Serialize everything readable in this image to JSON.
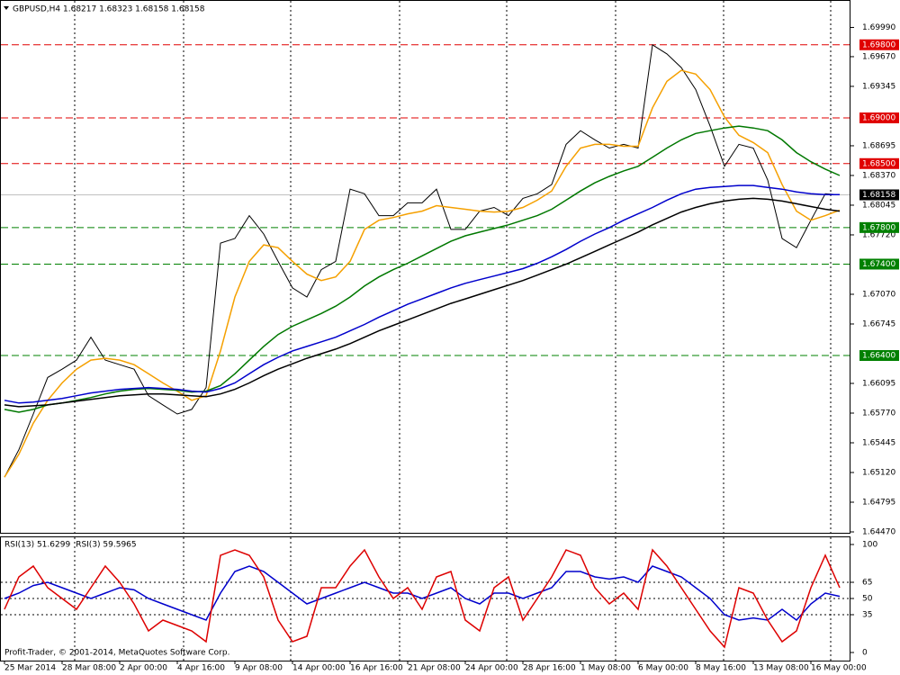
{
  "chart_data": [
    {
      "type": "line",
      "title": "GBPUSD,H4  1.68217 1.68323 1.68158 1.68158",
      "categories": [
        "25 Mar 2014",
        null,
        null,
        null,
        "28 Mar 08:00",
        null,
        null,
        null,
        "2 Apr 00:00",
        null,
        null,
        null,
        "4 Apr 16:00",
        null,
        null,
        null,
        "9 Apr 08:00",
        null,
        null,
        null,
        "14 Apr 00:00",
        null,
        null,
        null,
        "16 Apr 16:00",
        null,
        null,
        null,
        "21 Apr 08:00",
        null,
        null,
        null,
        "24 Apr 00:00",
        null,
        null,
        null,
        "28 Apr 16:00",
        null,
        null,
        null,
        "1 May 08:00",
        null,
        null,
        null,
        "6 May 00:00",
        null,
        null,
        null,
        "8 May 16:00",
        null,
        null,
        null,
        "13 May 08:00",
        null,
        null,
        null,
        "16 May 00:00",
        null,
        null
      ],
      "series": [
        {
          "color": "#000000",
          "values": [
            1.6507,
            1.6537,
            1.6576,
            1.6616,
            1.6625,
            1.6635,
            1.666,
            1.6635,
            1.663,
            1.6625,
            1.6596,
            1.6586,
            1.6576,
            1.6581,
            1.6605,
            1.6763,
            1.6768,
            1.6793,
            1.6773,
            1.6743,
            1.6714,
            1.6704,
            1.6734,
            1.6743,
            1.6822,
            1.6817,
            1.6793,
            1.6793,
            1.6807,
            1.6807,
            1.6822,
            1.6778,
            1.6778,
            1.6798,
            1.6802,
            1.6793,
            1.6812,
            1.6817,
            1.6827,
            1.6871,
            1.6886,
            1.6876,
            1.6867,
            1.6871,
            1.6867,
            1.698,
            1.697,
            1.6955,
            1.6931,
            1.6891,
            1.6847,
            1.6871,
            1.6867,
            1.6832,
            1.6768,
            1.6758,
            1.6788,
            1.6817,
            1.68158
          ]
        },
        {
          "color": "#f5a000",
          "values": [
            1.6507,
            1.6532,
            1.6566,
            1.6591,
            1.661,
            1.6625,
            1.6635,
            1.6637,
            1.6635,
            1.663,
            1.662,
            1.661,
            1.6601,
            1.6591,
            1.6596,
            1.6645,
            1.6704,
            1.6743,
            1.6761,
            1.6758,
            1.6743,
            1.6729,
            1.6722,
            1.6726,
            1.6743,
            1.6778,
            1.6788,
            1.6791,
            1.6795,
            1.6798,
            1.6804,
            1.6802,
            1.68,
            1.6798,
            1.6797,
            1.6798,
            1.6802,
            1.681,
            1.682,
            1.6847,
            1.6867,
            1.6871,
            1.6871,
            1.6869,
            1.6869,
            1.6911,
            1.694,
            1.6952,
            1.6948,
            1.6931,
            1.6901,
            1.6881,
            1.6873,
            1.6862,
            1.6827,
            1.6798,
            1.6788,
            1.6793,
            1.6799
          ]
        },
        {
          "color": "#007800",
          "values": [
            1.6581,
            1.6578,
            1.6581,
            1.6586,
            1.6588,
            1.6591,
            1.6594,
            1.6598,
            1.6601,
            1.6603,
            1.6604,
            1.6603,
            1.6602,
            1.66,
            1.6601,
            1.6607,
            1.662,
            1.6635,
            1.665,
            1.6663,
            1.6672,
            1.6679,
            1.6686,
            1.6694,
            1.6704,
            1.6716,
            1.6726,
            1.6734,
            1.6741,
            1.6749,
            1.6757,
            1.6765,
            1.6771,
            1.6775,
            1.6779,
            1.6783,
            1.6788,
            1.6793,
            1.68,
            1.681,
            1.682,
            1.6829,
            1.6836,
            1.6842,
            1.6847,
            1.6857,
            1.6867,
            1.6876,
            1.6883,
            1.6886,
            1.6889,
            1.6891,
            1.6889,
            1.6886,
            1.6876,
            1.6862,
            1.6852,
            1.6844,
            1.6837
          ]
        },
        {
          "color": "#0000cc",
          "values": [
            1.6591,
            1.6588,
            1.6589,
            1.6591,
            1.6593,
            1.6596,
            1.6599,
            1.6601,
            1.6603,
            1.6604,
            1.6605,
            1.6604,
            1.6603,
            1.6601,
            1.66,
            1.6604,
            1.661,
            1.662,
            1.663,
            1.6638,
            1.6645,
            1.665,
            1.6655,
            1.666,
            1.6667,
            1.6674,
            1.6682,
            1.6689,
            1.6696,
            1.6702,
            1.6708,
            1.6714,
            1.6719,
            1.6723,
            1.6727,
            1.6731,
            1.6735,
            1.6741,
            1.6748,
            1.6756,
            1.6765,
            1.6773,
            1.678,
            1.6788,
            1.6795,
            1.6802,
            1.681,
            1.6817,
            1.6822,
            1.6824,
            1.6825,
            1.6826,
            1.6826,
            1.6824,
            1.6822,
            1.6819,
            1.6817,
            1.6816,
            1.6816
          ]
        },
        {
          "color": "#000000",
          "values": [
            1.6586,
            1.6584,
            1.6585,
            1.6586,
            1.6588,
            1.659,
            1.6592,
            1.6594,
            1.6596,
            1.6597,
            1.6598,
            1.6598,
            1.6597,
            1.6596,
            1.6595,
            1.6598,
            1.6603,
            1.661,
            1.6618,
            1.6625,
            1.6631,
            1.6637,
            1.6642,
            1.6647,
            1.6653,
            1.666,
            1.6667,
            1.6673,
            1.6679,
            1.6685,
            1.6691,
            1.6697,
            1.6702,
            1.6707,
            1.6712,
            1.6717,
            1.6722,
            1.6728,
            1.6734,
            1.674,
            1.6747,
            1.6754,
            1.6761,
            1.6768,
            1.6775,
            1.6783,
            1.679,
            1.6797,
            1.6802,
            1.6806,
            1.6809,
            1.6811,
            1.6812,
            1.6811,
            1.6809,
            1.6806,
            1.6803,
            1.68,
            1.6798
          ]
        }
      ],
      "ylim": [
        1.6447,
        1.7029
      ],
      "yticks": [
        {
          "value": 1.6447,
          "label": "1.64470"
        },
        {
          "value": 1.64795,
          "label": "1.64795"
        },
        {
          "value": 1.6512,
          "label": "1.65120"
        },
        {
          "value": 1.65445,
          "label": "1.65445"
        },
        {
          "value": 1.6577,
          "label": "1.65770"
        },
        {
          "value": 1.66095,
          "label": "1.66095"
        },
        {
          "value": 1.66745,
          "label": "1.66745"
        },
        {
          "value": 1.6707,
          "label": "1.67070"
        },
        {
          "value": 1.6772,
          "label": "1.67720"
        },
        {
          "value": 1.68045,
          "label": "1.68045"
        },
        {
          "value": 1.6837,
          "label": "1.68370"
        },
        {
          "value": 1.68695,
          "label": "1.68695"
        },
        {
          "value": 1.69345,
          "label": "1.69345"
        },
        {
          "value": 1.6967,
          "label": "1.69670"
        },
        {
          "value": 1.6999,
          "label": "1.69990"
        }
      ],
      "levels": [
        {
          "value": 1.698,
          "label": "1.69800",
          "color": "#e00000"
        },
        {
          "value": 1.69,
          "label": "1.69000",
          "color": "#e00000"
        },
        {
          "value": 1.685,
          "label": "1.68500",
          "color": "#e00000"
        },
        {
          "value": 1.678,
          "label": "1.67800",
          "color": "#008000"
        },
        {
          "value": 1.674,
          "label": "1.67400",
          "color": "#008000"
        },
        {
          "value": 1.664,
          "label": "1.66400",
          "color": "#008000"
        }
      ],
      "current": {
        "value": 1.68158,
        "label": "1.68158",
        "color": "#000000"
      }
    },
    {
      "type": "line",
      "series": [
        {
          "name": "RSI(13) 51.6299",
          "color": "#0000cc",
          "values": [
            50,
            55,
            62,
            65,
            60,
            55,
            50,
            55,
            60,
            58,
            50,
            45,
            40,
            35,
            30,
            55,
            75,
            80,
            75,
            65,
            55,
            45,
            50,
            55,
            60,
            65,
            60,
            55,
            55,
            50,
            55,
            60,
            50,
            45,
            55,
            55,
            50,
            55,
            60,
            75,
            75,
            70,
            68,
            70,
            65,
            80,
            75,
            70,
            60,
            50,
            35,
            30,
            32,
            30,
            40,
            30,
            45,
            55,
            52
          ]
        },
        {
          "name": "RSI(3) 59.5965",
          "color": "#dd0000",
          "values": [
            40,
            70,
            80,
            60,
            50,
            40,
            60,
            80,
            65,
            45,
            20,
            30,
            25,
            20,
            10,
            90,
            95,
            90,
            70,
            30,
            10,
            15,
            60,
            60,
            80,
            95,
            70,
            50,
            60,
            40,
            70,
            75,
            30,
            20,
            60,
            70,
            30,
            50,
            70,
            95,
            90,
            60,
            45,
            55,
            40,
            95,
            80,
            60,
            40,
            20,
            5,
            60,
            55,
            30,
            10,
            20,
            60,
            90,
            60
          ]
        }
      ],
      "ylim": [
        0,
        100
      ],
      "yticks": [
        0,
        35,
        50,
        65,
        100
      ],
      "annotation": "Profit-Trader, © 2001-2014, MetaQuotes Software Corp."
    }
  ]
}
